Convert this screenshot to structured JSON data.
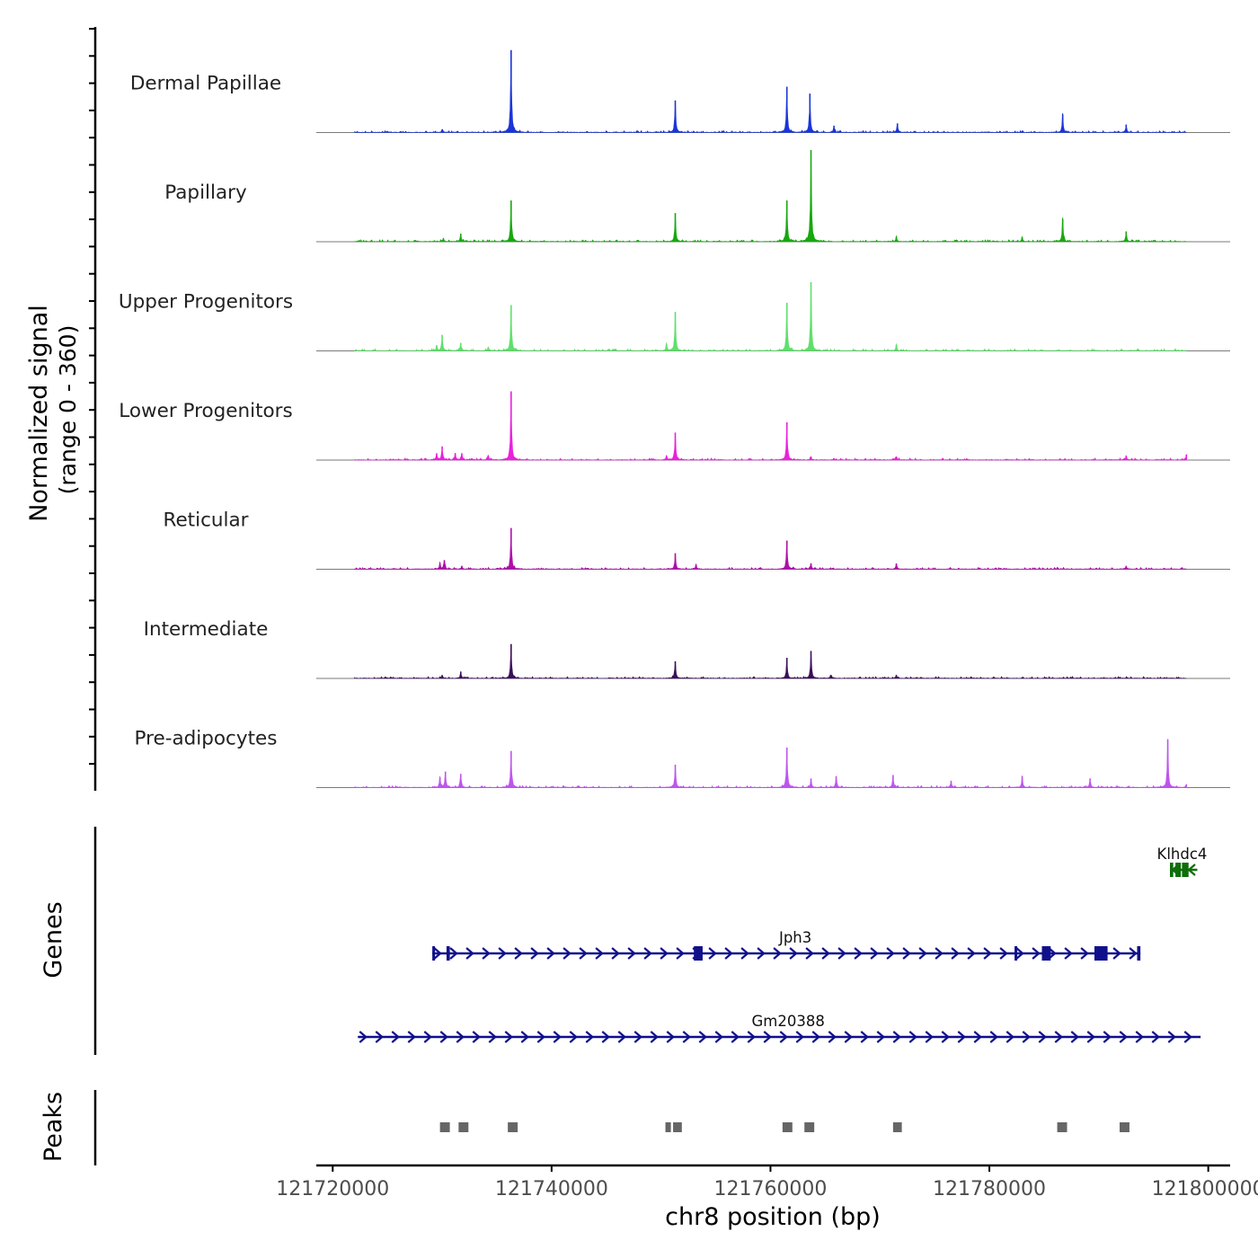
{
  "chart_data": {
    "type": "area",
    "title": "",
    "ylabel_line1": "Normalized signal",
    "ylabel_line2": "(range 0 - 360)",
    "xlabel": "chr8 position (bp)",
    "genes_label": "Genes",
    "peaks_label": "Peaks",
    "xlim": [
      121718500,
      121802000
    ],
    "ylim": [
      0,
      360
    ],
    "x_ticks": [
      121720000,
      121740000,
      121760000,
      121780000,
      121800000
    ],
    "x_tick_labels": [
      "121720000",
      "121740000",
      "121760000",
      "121780000",
      "121800000"
    ],
    "signal_extent": [
      121722000,
      121798000
    ],
    "tracks": [
      {
        "name": "Dermal Papillae",
        "color": "#1a35d8",
        "peaks": [
          [
            121730000,
            14
          ],
          [
            121736300,
            360
          ],
          [
            121751300,
            140
          ],
          [
            121761500,
            200
          ],
          [
            121763600,
            170
          ],
          [
            121765800,
            30
          ],
          [
            121771600,
            40
          ],
          [
            121786700,
            80
          ],
          [
            121792500,
            35
          ]
        ]
      },
      {
        "name": "Papillary",
        "color": "#17a80f",
        "peaks": [
          [
            121730100,
            14
          ],
          [
            121731700,
            35
          ],
          [
            121736300,
            180
          ],
          [
            121751300,
            125
          ],
          [
            121761500,
            180
          ],
          [
            121763700,
            400
          ],
          [
            121771500,
            20
          ],
          [
            121783000,
            20
          ],
          [
            121786700,
            100
          ],
          [
            121792500,
            45
          ]
        ]
      },
      {
        "name": "Upper Progenitors",
        "color": "#5ee06a",
        "peaks": [
          [
            121729500,
            25
          ],
          [
            121730000,
            70
          ],
          [
            121731700,
            35
          ],
          [
            121734200,
            15
          ],
          [
            121736300,
            200
          ],
          [
            121750500,
            30
          ],
          [
            121751300,
            170
          ],
          [
            121761500,
            210
          ],
          [
            121763700,
            300
          ],
          [
            121771500,
            25
          ]
        ]
      },
      {
        "name": "Lower Progenitors",
        "color": "#ea20dd",
        "peaks": [
          [
            121729500,
            30
          ],
          [
            121730000,
            60
          ],
          [
            121731200,
            30
          ],
          [
            121731800,
            30
          ],
          [
            121734200,
            20
          ],
          [
            121736300,
            300
          ],
          [
            121750500,
            20
          ],
          [
            121751300,
            120
          ],
          [
            121761500,
            165
          ],
          [
            121763700,
            15
          ],
          [
            121771500,
            15
          ],
          [
            121792500,
            20
          ],
          [
            121798000,
            25
          ]
        ]
      },
      {
        "name": "Reticular",
        "color": "#ad0fa9",
        "peaks": [
          [
            121729800,
            25
          ],
          [
            121730200,
            40
          ],
          [
            121731800,
            15
          ],
          [
            121736300,
            180
          ],
          [
            121751300,
            70
          ],
          [
            121753200,
            20
          ],
          [
            121761500,
            125
          ],
          [
            121763700,
            25
          ],
          [
            121771500,
            25
          ],
          [
            121792500,
            15
          ]
        ]
      },
      {
        "name": "Intermediate",
        "color": "#3b0f59",
        "peaks": [
          [
            121730000,
            15
          ],
          [
            121731700,
            30
          ],
          [
            121736300,
            150
          ],
          [
            121751300,
            75
          ],
          [
            121761500,
            90
          ],
          [
            121763700,
            120
          ],
          [
            121765500,
            15
          ],
          [
            121771500,
            15
          ]
        ]
      },
      {
        "name": "Pre-adipocytes",
        "color": "#be55ed",
        "peaks": [
          [
            121729800,
            45
          ],
          [
            121730300,
            70
          ],
          [
            121731700,
            60
          ],
          [
            121736300,
            160
          ],
          [
            121751300,
            100
          ],
          [
            121761500,
            175
          ],
          [
            121763700,
            40
          ],
          [
            121766000,
            50
          ],
          [
            121771200,
            55
          ],
          [
            121776500,
            30
          ],
          [
            121783000,
            50
          ],
          [
            121789200,
            40
          ],
          [
            121796300,
            210
          ],
          [
            121798000,
            15
          ]
        ]
      }
    ],
    "genes": [
      {
        "name": "Klhdc4",
        "color": "#0e6e0a",
        "start": 121796500,
        "end": 121799000,
        "strand": "-",
        "row": 0,
        "exons": [
          [
            121796500,
            121796800
          ],
          [
            121797000,
            121797500
          ],
          [
            121797600,
            121798200
          ]
        ]
      },
      {
        "name": "Jph3",
        "color": "#10108c",
        "start": 121729100,
        "end": 121793800,
        "strand": "+",
        "row": 1,
        "exons": [
          [
            121729100,
            121729200
          ],
          [
            121730400,
            121730700
          ],
          [
            121753000,
            121753800
          ],
          [
            121782300,
            121782500
          ],
          [
            121784800,
            121785600
          ],
          [
            121789600,
            121790800
          ],
          [
            121793500,
            121793800
          ]
        ]
      },
      {
        "name": "Gm20388",
        "color": "#10108c",
        "start": 121722300,
        "end": 121799300,
        "strand": "+",
        "row": 2,
        "exons": []
      }
    ],
    "peak_regions": [
      [
        121729800,
        121730700
      ],
      [
        121731500,
        121732400
      ],
      [
        121736000,
        121736900
      ],
      [
        121750400,
        121750900
      ],
      [
        121751100,
        121751900
      ],
      [
        121761100,
        121762000
      ],
      [
        121763100,
        121764000
      ],
      [
        121771200,
        121772000
      ],
      [
        121786200,
        121787100
      ],
      [
        121791900,
        121792800
      ]
    ]
  }
}
